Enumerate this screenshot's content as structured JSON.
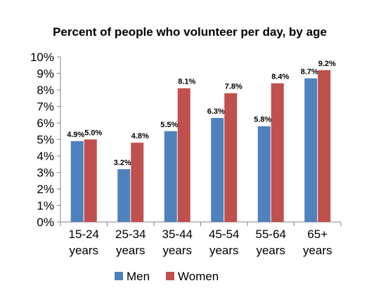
{
  "chart_data": {
    "type": "bar",
    "title": "Percent of people who volunteer per day, by age",
    "categories": [
      [
        "15-24",
        "years"
      ],
      [
        "25-34",
        "years"
      ],
      [
        "35-44",
        "years"
      ],
      [
        "45-54",
        "years"
      ],
      [
        "55-64",
        "years"
      ],
      [
        "65+",
        "years"
      ]
    ],
    "series": [
      {
        "name": "Men",
        "color": "#4F81BD",
        "values": [
          4.9,
          3.2,
          5.5,
          6.3,
          5.8,
          8.7
        ],
        "labels": [
          "4.9%",
          "3.2%",
          "5.5%",
          "6.3%",
          "5.8%",
          "8.7%"
        ]
      },
      {
        "name": "Women",
        "color": "#C0504D",
        "values": [
          5.0,
          4.8,
          8.1,
          7.8,
          8.4,
          9.2
        ],
        "labels": [
          "5.0%",
          "4.8%",
          "8.1%",
          "7.8%",
          "8.4%",
          "9.2%"
        ]
      }
    ],
    "ylim": [
      0,
      10
    ],
    "yticks": [
      "0%",
      "1%",
      "2%",
      "3%",
      "4%",
      "5%",
      "6%",
      "7%",
      "8%",
      "9%",
      "10%"
    ],
    "grid": false,
    "legend": "bottom"
  }
}
